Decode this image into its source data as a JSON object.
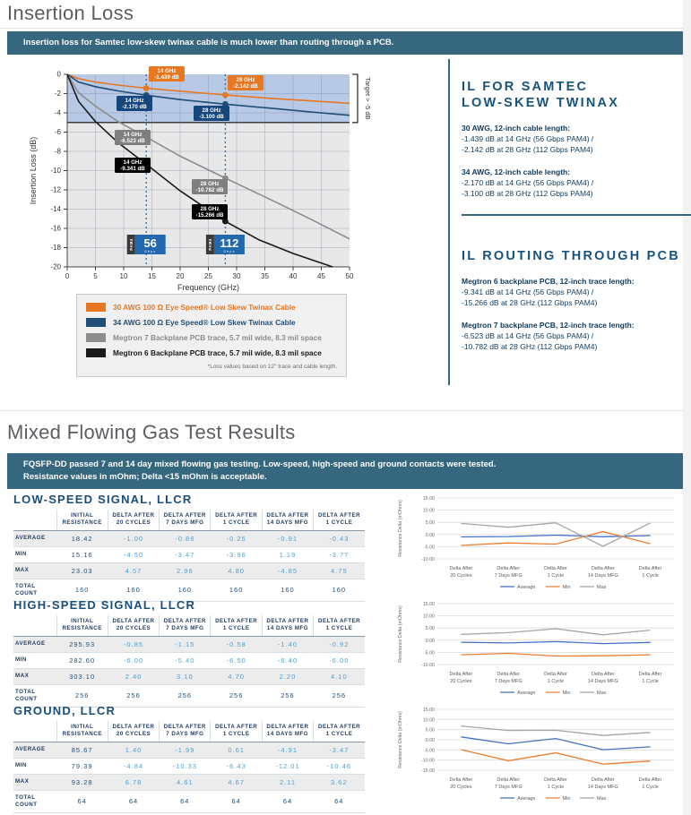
{
  "page": {
    "title1": "Insertion Loss",
    "banner1": "Insertion loss for Samtec low-skew twinax cable is much lower than routing through a PCB.",
    "title2": "Mixed Flowing Gas Test Results",
    "banner2_line1": "FQSFP-DD passed 7 and 14 day mixed flowing gas testing. Low-speed, high-speed and ground contacts were tested.",
    "banner2_line2": "Resistance values in mOhm; Delta <15 mOhm is acceptable."
  },
  "colors": {
    "banner_teal": "#35677F",
    "heading_gray": "#5B5E62",
    "navy_text": "#0E3A5C",
    "panel_heading": "#17537C",
    "delta_blue": "#4BA3D8",
    "dark_value": "#1F4E79",
    "orange": "#E87722",
    "twinax_blue": "#1F4E79",
    "pcb_gray": "#8C8C8C",
    "pcb_black": "#1A1A1A"
  },
  "il_legend": {
    "entries": [
      {
        "color": "#E87722",
        "label": "30 AWG 100 Ω Eye Speed® Low Skew Twinax Cable"
      },
      {
        "color": "#1F4E79",
        "label": "34 AWG 100 Ω Eye Speed® Low Skew Twinax Cable"
      },
      {
        "color": "#8C8C8C",
        "label": "Megtron 7 Backplane PCB trace, 5.7 mil wide, 8.3 mil space"
      },
      {
        "color": "#1A1A1A",
        "label": "Megtron 6 Backplane PCB trace, 5.7 mil wide, 8.3 mil space"
      }
    ],
    "note": "*Loss values based on 12\" trace and cable length."
  },
  "right_panel": {
    "twinax": {
      "title_line1": "IL FOR SAMTEC",
      "title_line2": "LOW-SKEW TWINAX",
      "items": [
        {
          "head": "30 AWG, 12-inch cable length:",
          "line1": "-1.439 dB at 14 GHz (56 Gbps PAM4) /",
          "line2": "-2.142 dB at 28 GHz (112 Gbps PAM4)"
        },
        {
          "head": "34 AWG, 12-inch cable length:",
          "line1": "-2.170 dB at 14 GHz (56 Gbps PAM4) /",
          "line2": "-3.100 dB at 28 GHz (112 Gbps PAM4)"
        }
      ]
    },
    "pcb": {
      "title": "IL ROUTING THROUGH PCB",
      "items": [
        {
          "head": "Megtron 6 backplane PCB, 12-inch trace length:",
          "line1": "-9.341 dB at 14 GHz (56 Gbps PAM4) /",
          "line2": "-15.266 dB at 28 GHz (112 Gbps PAM4)"
        },
        {
          "head": "Megtron 7 backplane PCB, 12-inch trace length:",
          "line1": "-6.523 dB at 14 GHz (56 Gbps PAM4) /",
          "line2": "-10.782 dB at 28 GHz (112 Gbps PAM4)"
        }
      ]
    }
  },
  "mfg_sections": [
    {
      "title": "LOW-SPEED SIGNAL, LLCR",
      "columns": [
        [
          "INITIAL",
          "RESISTANCE"
        ],
        [
          "DELTA AFTER",
          "20 CYCLES"
        ],
        [
          "DELTA AFTER",
          "7 DAYS MFG"
        ],
        [
          "DELTA AFTER",
          "1 CYCLE"
        ],
        [
          "DELTA AFTER",
          "14 DAYS MFG"
        ],
        [
          "DELTA AFTER",
          "1 CYCLE"
        ]
      ],
      "rows": [
        {
          "label": "AVERAGE",
          "values": [
            "18.42",
            "-1.00",
            "-0.86",
            "-0.25",
            "-0.91",
            "-0.43"
          ]
        },
        {
          "label": "MIN",
          "values": [
            "15.16",
            "-4.50",
            "-3.47",
            "-3.96",
            "1.19",
            "-3.77"
          ]
        },
        {
          "label": "MAX",
          "values": [
            "23.03",
            "4.57",
            "2.96",
            "4.80",
            "-4.85",
            "4.75"
          ]
        },
        {
          "label": "TOTAL COUNT",
          "values": [
            "160",
            "160",
            "160",
            "160",
            "160",
            "160"
          ]
        }
      ]
    },
    {
      "title": "HIGH-SPEED SIGNAL, LLCR",
      "columns": [
        [
          "INITIAL",
          "RESISTANCE"
        ],
        [
          "DELTA AFTER",
          "20 CYCLES"
        ],
        [
          "DELTA AFTER",
          "7 DAYS MFG"
        ],
        [
          "DELTA AFTER",
          "1 CYCLE"
        ],
        [
          "DELTA AFTER",
          "14 DAYS MFG"
        ],
        [
          "DELTA AFTER",
          "1 CYCLE"
        ]
      ],
      "rows": [
        {
          "label": "AVERAGE",
          "values": [
            "295.93",
            "-0.85",
            "-1.15",
            "-0.58",
            "-1.40",
            "-0.92"
          ]
        },
        {
          "label": "MIN",
          "values": [
            "282.60",
            "-6.00",
            "-5.40",
            "-6.50",
            "-6.40",
            "-6.00"
          ]
        },
        {
          "label": "MAX",
          "values": [
            "303.10",
            "2.40",
            "3.10",
            "4.70",
            "2.20",
            "4.10"
          ]
        },
        {
          "label": "TOTAL COUNT",
          "values": [
            "256",
            "256",
            "256",
            "256",
            "256",
            "256"
          ]
        }
      ]
    },
    {
      "title": "GROUND, LLCR",
      "columns": [
        [
          "INITIAL",
          "RESISTANCE"
        ],
        [
          "DELTA AFTER",
          "20 CYCLES"
        ],
        [
          "DELTA AFTER",
          "7 DAYS MFG"
        ],
        [
          "DELTA AFTER",
          "1 CYCLE"
        ],
        [
          "DELTA AFTER",
          "14 DAYS MFG"
        ],
        [
          "DELTA AFTER",
          "1 CYCLE"
        ]
      ],
      "rows": [
        {
          "label": "AVERAGE",
          "values": [
            "85.67",
            "1.40",
            "-1.99",
            "0.61",
            "-4.91",
            "-3.47"
          ]
        },
        {
          "label": "MIN",
          "values": [
            "79.39",
            "-4.84",
            "-10.33",
            "-6.43",
            "-12.01",
            "-10.46"
          ]
        },
        {
          "label": "MAX",
          "values": [
            "93.28",
            "6.78",
            "4.61",
            "4.67",
            "2.11",
            "3.62"
          ]
        },
        {
          "label": "TOTAL COUNT",
          "values": [
            "64",
            "64",
            "64",
            "64",
            "64",
            "64"
          ]
        }
      ]
    }
  ],
  "chart_data": [
    {
      "id": "insertion-loss",
      "type": "line",
      "title": "",
      "xlabel": "Frequency (GHz)",
      "ylabel": "Insertion Loss (dB)",
      "xlim": [
        0,
        50
      ],
      "ylim": [
        -20,
        0
      ],
      "xticks": [
        0,
        5,
        10,
        15,
        20,
        25,
        30,
        35,
        40,
        45,
        50
      ],
      "yticks": [
        0,
        -2,
        -4,
        -6,
        -8,
        -10,
        -12,
        -14,
        -16,
        -18,
        -20
      ],
      "grid": true,
      "target_band": {
        "from": 0,
        "to": -5
      },
      "target_label": "Target > -5 dB",
      "marker_freqs": [
        14,
        28
      ],
      "pam4_badges": [
        {
          "x": 14,
          "tab": "PAM4",
          "label": "56",
          "sub": "Gbps"
        },
        {
          "x": 28,
          "tab": "PAM4",
          "label": "112",
          "sub": "Gbps"
        }
      ],
      "series": [
        {
          "name": "30 AWG 100 Ω Eye Speed® Low Skew Twinax Cable",
          "color": "#E87722",
          "callout_bg": "#E87722",
          "curve": [
            [
              0,
              0
            ],
            [
              2,
              -0.45
            ],
            [
              5,
              -0.8
            ],
            [
              9,
              -1.12
            ],
            [
              14,
              -1.439
            ],
            [
              20,
              -1.75
            ],
            [
              28,
              -2.142
            ],
            [
              36,
              -2.49
            ],
            [
              43,
              -2.75
            ],
            [
              50,
              -3.0
            ]
          ],
          "markers": [
            [
              14,
              -1.439
            ],
            [
              28,
              -2.142
            ]
          ],
          "callouts": [
            {
              "line1": "14 GHz",
              "line2": "-1.439 dB"
            },
            {
              "line1": "28 GHz",
              "line2": "-2.142 dB"
            }
          ]
        },
        {
          "name": "34 AWG 100 Ω Eye Speed® Low Skew Twinax Cable",
          "color": "#1F4E79",
          "callout_bg": "#16477C",
          "curve": [
            [
              0,
              0
            ],
            [
              2,
              -0.8
            ],
            [
              5,
              -1.28
            ],
            [
              9,
              -1.72
            ],
            [
              14,
              -2.17
            ],
            [
              20,
              -2.62
            ],
            [
              28,
              -3.1
            ],
            [
              36,
              -3.52
            ],
            [
              43,
              -3.9
            ],
            [
              50,
              -4.25
            ]
          ],
          "markers": [
            [
              14,
              -2.17
            ],
            [
              28,
              -3.1
            ]
          ],
          "callouts": [
            {
              "line1": "14 GHz",
              "line2": "-2.170 dB"
            },
            {
              "line1": "28 GHz",
              "line2": "-3.100 dB"
            }
          ]
        },
        {
          "name": "Megtron 7 Backplane PCB trace, 5.7 mil wide, 8.3 mil space",
          "color": "#8C8C8C",
          "callout_bg": "#7F7F7F",
          "curve": [
            [
              0,
              0
            ],
            [
              2,
              -1.9
            ],
            [
              5,
              -3.3
            ],
            [
              9,
              -4.9
            ],
            [
              14,
              -6.523
            ],
            [
              20,
              -8.5
            ],
            [
              28,
              -10.782
            ],
            [
              36,
              -13.0
            ],
            [
              43,
              -15.0
            ],
            [
              50,
              -17.1
            ]
          ],
          "markers": [
            [
              14,
              -6.523
            ],
            [
              28,
              -10.782
            ]
          ],
          "callouts": [
            {
              "line1": "14 GHz",
              "line2": "-6.523 dB"
            },
            {
              "line1": "28 GHz",
              "line2": "-10.782 dB"
            }
          ]
        },
        {
          "name": "Megtron 6 Backplane PCB trace, 5.7 mil wide, 8.3 mil space",
          "color": "#1A1A1A",
          "callout_bg": "#000000",
          "curve": [
            [
              0,
              0
            ],
            [
              2,
              -2.8
            ],
            [
              5,
              -4.9
            ],
            [
              9,
              -7.1
            ],
            [
              14,
              -9.341
            ],
            [
              20,
              -12.1
            ],
            [
              28,
              -15.266
            ],
            [
              34,
              -17.2
            ],
            [
              40,
              -18.6
            ],
            [
              47,
              -20.0
            ]
          ],
          "markers": [
            [
              14,
              -9.341
            ],
            [
              28,
              -15.266
            ]
          ],
          "callouts": [
            {
              "line1": "14 GHz",
              "line2": "-9.341 dB"
            },
            {
              "line1": "28 GHz",
              "line2": "-15.266 dB"
            }
          ]
        }
      ]
    },
    {
      "id": "low-speed-delta",
      "type": "line",
      "ylabel": "Resistance Delta (mOhms)",
      "ylim": [
        -10,
        15
      ],
      "yticks": [
        "15.00",
        "10.00",
        "5.00",
        "0.00",
        "-5.00",
        "-10.00"
      ],
      "categories": [
        [
          "Delta After",
          "20 Cycles"
        ],
        [
          "Delta After",
          "7 Days MFG"
        ],
        [
          "Delta After",
          "1 Cycle"
        ],
        [
          "Delta After",
          "14 Days MFG"
        ],
        [
          "Delta After",
          "1 Cycle"
        ]
      ],
      "legend_position": "bottom",
      "series": [
        {
          "name": "Average",
          "color": "#4472C4",
          "values": [
            -1.0,
            -0.86,
            -0.25,
            -0.91,
            -0.43
          ]
        },
        {
          "name": "Min",
          "color": "#ED7D31",
          "values": [
            -4.5,
            -3.47,
            -3.96,
            1.19,
            -3.77
          ]
        },
        {
          "name": "Max",
          "color": "#A5A5A5",
          "values": [
            4.57,
            2.96,
            4.8,
            -4.85,
            4.75
          ]
        }
      ]
    },
    {
      "id": "high-speed-delta",
      "type": "line",
      "ylabel": "Resistance Delta (mOhms)",
      "ylim": [
        -10,
        15
      ],
      "yticks": [
        "15.00",
        "10.00",
        "5.00",
        "0.00",
        "-5.00",
        "-10.00"
      ],
      "categories": [
        [
          "Delta After",
          "20 Cycles"
        ],
        [
          "Delta After",
          "7 Days MFG"
        ],
        [
          "Delta After",
          "1 Cycle"
        ],
        [
          "Delta After",
          "14 Days MFG"
        ],
        [
          "Delta After",
          "1 Cycle"
        ]
      ],
      "legend_position": "bottom",
      "series": [
        {
          "name": "Average",
          "color": "#4472C4",
          "values": [
            -0.85,
            -1.15,
            -0.58,
            -1.4,
            -0.92
          ]
        },
        {
          "name": "Min",
          "color": "#ED7D31",
          "values": [
            -6.0,
            -5.4,
            -6.5,
            -6.4,
            -6.0
          ]
        },
        {
          "name": "Max",
          "color": "#A5A5A5",
          "values": [
            2.4,
            3.1,
            4.7,
            2.2,
            4.1
          ]
        }
      ]
    },
    {
      "id": "ground-delta",
      "type": "line",
      "ylabel": "Resistance Delta (mOhms)",
      "ylim": [
        -15,
        15
      ],
      "yticks": [
        "15.00",
        "10.00",
        "5.00",
        "0.00",
        "-5.00",
        "-10.00",
        "-15.00"
      ],
      "categories": [
        [
          "Delta After",
          "20 Cycles"
        ],
        [
          "Delta After",
          "7 Days MFG"
        ],
        [
          "Delta After",
          "1 Cycle"
        ],
        [
          "Delta After",
          "14 Days MFG"
        ],
        [
          "Delta After",
          "1 Cycle"
        ]
      ],
      "legend_position": "bottom",
      "series": [
        {
          "name": "Average",
          "color": "#4472C4",
          "values": [
            1.4,
            -1.99,
            0.61,
            -4.91,
            -3.47
          ]
        },
        {
          "name": "Min",
          "color": "#ED7D31",
          "values": [
            -4.84,
            -10.33,
            -6.43,
            -12.01,
            -10.46
          ]
        },
        {
          "name": "Max",
          "color": "#A5A5A5",
          "values": [
            6.78,
            4.61,
            4.67,
            2.11,
            3.62
          ]
        }
      ]
    }
  ]
}
